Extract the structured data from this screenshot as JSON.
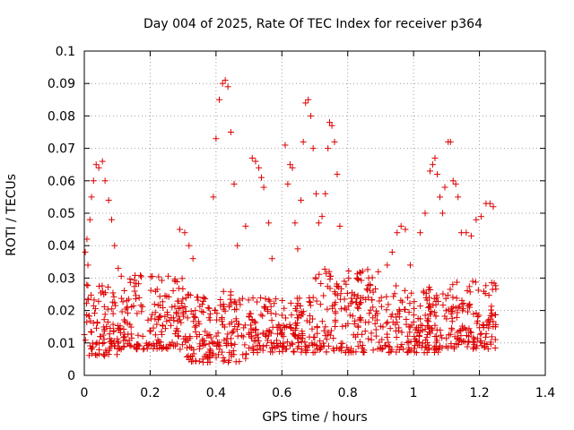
{
  "chart_data": {
    "type": "scatter",
    "title": "Day 004 of 2025, Rate Of TEC Index for receiver p364",
    "xlabel": "GPS time / hours",
    "ylabel": "ROTI / TECUs",
    "xlim": [
      0,
      1.4
    ],
    "ylim": [
      0,
      0.1
    ],
    "x_ticks": [
      "0",
      "0.2",
      "0.4",
      "0.6",
      "0.8",
      "1",
      "1.2",
      "1.4"
    ],
    "y_ticks": [
      "0",
      "0.01",
      "0.02",
      "0.03",
      "0.04",
      "0.05",
      "0.06",
      "0.07",
      "0.08",
      "0.09",
      "0.1"
    ],
    "grid": true,
    "marker": "+",
    "color": "#dd0000",
    "highlights": [
      {
        "x": 0.003,
        "y": 0.038
      },
      {
        "x": 0.008,
        "y": 0.042
      },
      {
        "x": 0.011,
        "y": 0.034
      },
      {
        "x": 0.017,
        "y": 0.048
      },
      {
        "x": 0.022,
        "y": 0.055
      },
      {
        "x": 0.028,
        "y": 0.06
      },
      {
        "x": 0.036,
        "y": 0.065
      },
      {
        "x": 0.044,
        "y": 0.064
      },
      {
        "x": 0.055,
        "y": 0.066
      },
      {
        "x": 0.063,
        "y": 0.06
      },
      {
        "x": 0.074,
        "y": 0.054
      },
      {
        "x": 0.083,
        "y": 0.048
      },
      {
        "x": 0.092,
        "y": 0.04
      },
      {
        "x": 0.103,
        "y": 0.033
      },
      {
        "x": 0.29,
        "y": 0.045
      },
      {
        "x": 0.305,
        "y": 0.044
      },
      {
        "x": 0.318,
        "y": 0.04
      },
      {
        "x": 0.33,
        "y": 0.036
      },
      {
        "x": 0.392,
        "y": 0.055
      },
      {
        "x": 0.4,
        "y": 0.073
      },
      {
        "x": 0.41,
        "y": 0.085
      },
      {
        "x": 0.42,
        "y": 0.09
      },
      {
        "x": 0.428,
        "y": 0.091
      },
      {
        "x": 0.436,
        "y": 0.089
      },
      {
        "x": 0.445,
        "y": 0.075
      },
      {
        "x": 0.455,
        "y": 0.059
      },
      {
        "x": 0.465,
        "y": 0.04
      },
      {
        "x": 0.49,
        "y": 0.046
      },
      {
        "x": 0.51,
        "y": 0.067
      },
      {
        "x": 0.52,
        "y": 0.066
      },
      {
        "x": 0.53,
        "y": 0.064
      },
      {
        "x": 0.538,
        "y": 0.061
      },
      {
        "x": 0.545,
        "y": 0.058
      },
      {
        "x": 0.56,
        "y": 0.047
      },
      {
        "x": 0.57,
        "y": 0.036
      },
      {
        "x": 0.61,
        "y": 0.071
      },
      {
        "x": 0.618,
        "y": 0.059
      },
      {
        "x": 0.625,
        "y": 0.065
      },
      {
        "x": 0.632,
        "y": 0.064
      },
      {
        "x": 0.64,
        "y": 0.047
      },
      {
        "x": 0.648,
        "y": 0.039
      },
      {
        "x": 0.658,
        "y": 0.054
      },
      {
        "x": 0.665,
        "y": 0.072
      },
      {
        "x": 0.672,
        "y": 0.084
      },
      {
        "x": 0.68,
        "y": 0.085
      },
      {
        "x": 0.688,
        "y": 0.08
      },
      {
        "x": 0.695,
        "y": 0.07
      },
      {
        "x": 0.704,
        "y": 0.056
      },
      {
        "x": 0.712,
        "y": 0.047
      },
      {
        "x": 0.722,
        "y": 0.049
      },
      {
        "x": 0.732,
        "y": 0.056
      },
      {
        "x": 0.74,
        "y": 0.07
      },
      {
        "x": 0.745,
        "y": 0.078
      },
      {
        "x": 0.752,
        "y": 0.077
      },
      {
        "x": 0.76,
        "y": 0.072
      },
      {
        "x": 0.768,
        "y": 0.062
      },
      {
        "x": 0.776,
        "y": 0.046
      },
      {
        "x": 0.92,
        "y": 0.034
      },
      {
        "x": 0.935,
        "y": 0.038
      },
      {
        "x": 0.95,
        "y": 0.044
      },
      {
        "x": 0.962,
        "y": 0.046
      },
      {
        "x": 0.975,
        "y": 0.045
      },
      {
        "x": 0.99,
        "y": 0.034
      },
      {
        "x": 1.02,
        "y": 0.044
      },
      {
        "x": 1.035,
        "y": 0.05
      },
      {
        "x": 1.05,
        "y": 0.063
      },
      {
        "x": 1.058,
        "y": 0.065
      },
      {
        "x": 1.065,
        "y": 0.067
      },
      {
        "x": 1.072,
        "y": 0.062
      },
      {
        "x": 1.08,
        "y": 0.055
      },
      {
        "x": 1.088,
        "y": 0.05
      },
      {
        "x": 1.095,
        "y": 0.058
      },
      {
        "x": 1.105,
        "y": 0.072
      },
      {
        "x": 1.112,
        "y": 0.072
      },
      {
        "x": 1.12,
        "y": 0.06
      },
      {
        "x": 1.128,
        "y": 0.059
      },
      {
        "x": 1.135,
        "y": 0.055
      },
      {
        "x": 1.145,
        "y": 0.044
      },
      {
        "x": 1.16,
        "y": 0.044
      },
      {
        "x": 1.175,
        "y": 0.043
      },
      {
        "x": 1.19,
        "y": 0.048
      },
      {
        "x": 1.205,
        "y": 0.049
      },
      {
        "x": 1.22,
        "y": 0.053
      },
      {
        "x": 1.232,
        "y": 0.053
      },
      {
        "x": 1.242,
        "y": 0.052
      }
    ],
    "background_bands": [
      {
        "x_range": [
          0.0,
          0.1
        ],
        "y_range": [
          0.006,
          0.028
        ]
      },
      {
        "x_range": [
          0.1,
          0.3
        ],
        "y_range": [
          0.008,
          0.031
        ]
      },
      {
        "x_range": [
          0.3,
          0.5
        ],
        "y_range": [
          0.004,
          0.026
        ]
      },
      {
        "x_range": [
          0.5,
          0.7
        ],
        "y_range": [
          0.007,
          0.024
        ]
      },
      {
        "x_range": [
          0.7,
          0.9
        ],
        "y_range": [
          0.007,
          0.033
        ]
      },
      {
        "x_range": [
          0.9,
          1.1
        ],
        "y_range": [
          0.007,
          0.028
        ]
      },
      {
        "x_range": [
          1.1,
          1.25
        ],
        "y_range": [
          0.008,
          0.029
        ]
      }
    ]
  }
}
